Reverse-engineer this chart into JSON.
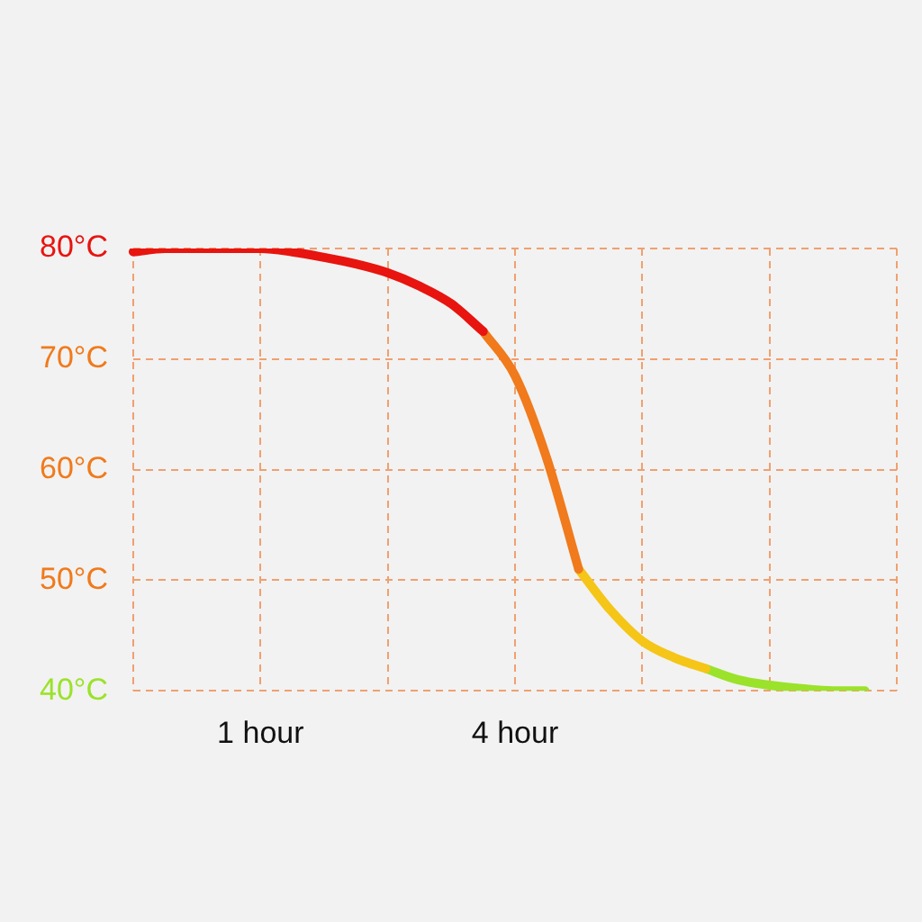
{
  "chart_data": {
    "type": "line",
    "categories": [
      null,
      null,
      null,
      null,
      "1 hour",
      null,
      null,
      null,
      null,
      null,
      null,
      null,
      "4 hour",
      null,
      null,
      null,
      null,
      null,
      null,
      null,
      null,
      null,
      null,
      null,
      null
    ],
    "series": [
      {
        "color": "#e8140f",
        "values": [
          79.7,
          80,
          80,
          80,
          80,
          79.7,
          79.2,
          78.6,
          77.8,
          76.6,
          75,
          72.5,
          null,
          null,
          null,
          null,
          null,
          null,
          null,
          null,
          null,
          null,
          null,
          null,
          null
        ]
      },
      {
        "color": "#f07a1c",
        "values": [
          null,
          null,
          null,
          null,
          null,
          null,
          null,
          null,
          null,
          null,
          null,
          72.5,
          68.5,
          61,
          51,
          null,
          null,
          null,
          null,
          null,
          null,
          null,
          null,
          null,
          null
        ]
      },
      {
        "color": "#f5c518",
        "values": [
          null,
          null,
          null,
          null,
          null,
          null,
          null,
          null,
          null,
          null,
          null,
          null,
          null,
          null,
          51,
          47.3,
          44.5,
          43,
          42,
          null,
          null,
          null,
          null,
          null,
          null
        ]
      },
      {
        "color": "#9be22a",
        "values": [
          null,
          null,
          null,
          null,
          null,
          null,
          null,
          null,
          null,
          null,
          null,
          null,
          null,
          null,
          null,
          null,
          null,
          null,
          42,
          41,
          40.5,
          40.2,
          40,
          40,
          null
        ]
      }
    ],
    "ylim": [
      40,
      80
    ],
    "yticks": [
      {
        "value": 40,
        "label": "40°C"
      },
      {
        "value": 50,
        "label": "50°C"
      },
      {
        "value": 60,
        "label": "60°C"
      },
      {
        "value": 70,
        "label": "70°C"
      },
      {
        "value": 80,
        "label": "80°C"
      }
    ],
    "grid": true,
    "marker": "none",
    "line_style": "solid"
  }
}
